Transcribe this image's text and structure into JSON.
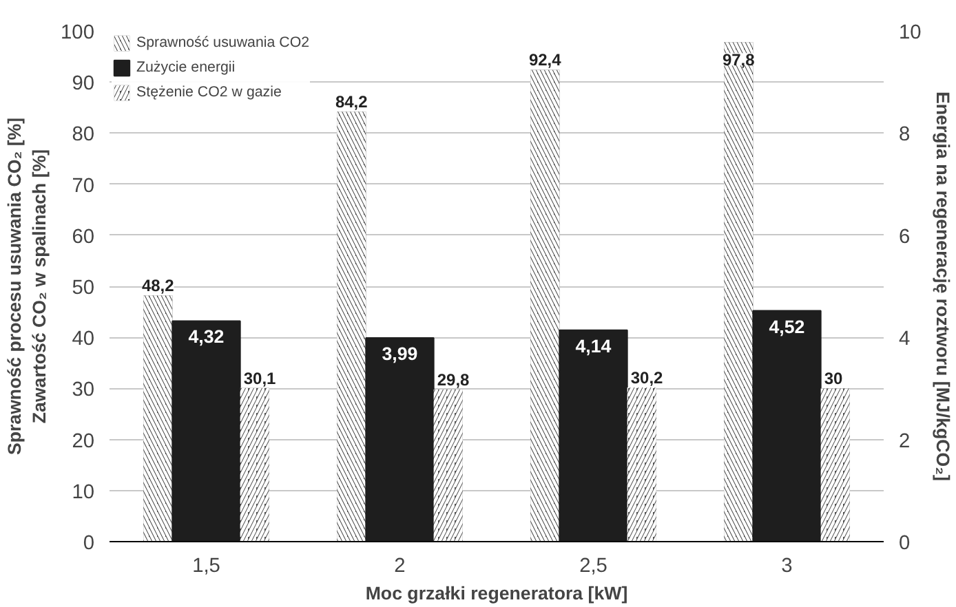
{
  "chart_data": {
    "type": "bar",
    "xlabel": "Moc grzałki regeneratora [kW]",
    "ylabel": "Sprawność procesu usuwania CO₂ [%]\nZawartość CO₂ w spalinach [%]",
    "y2label": "Energia na regenerację roztworu [MJ/kgCO₂]",
    "categories": [
      "1,5",
      "2",
      "2,5",
      "3"
    ],
    "series": [
      {
        "name": "Sprawność usuwania CO2",
        "color": "#404040",
        "values": [
          48.2,
          84.2,
          92.4,
          97.8
        ],
        "value_labels": [
          "48,2",
          "84,2",
          "92,4",
          "97,8"
        ]
      },
      {
        "name": "Zużycie energii",
        "color": "#1e1e1e",
        "axis": "y2",
        "values": [
          4.32,
          3.99,
          4.14,
          4.52
        ],
        "value_labels": [
          "4,32",
          "3,99",
          "4,14",
          "4,52"
        ]
      },
      {
        "name": "Stężenie CO2 w gazie",
        "color": "#505050",
        "values": [
          30.1,
          29.8,
          30.2,
          30
        ],
        "value_labels": [
          "30,1",
          "29,8",
          "30,2",
          "30"
        ]
      }
    ],
    "ylim": [
      0,
      100
    ],
    "yticks": [
      0,
      10,
      20,
      30,
      40,
      50,
      60,
      70,
      80,
      90,
      100
    ],
    "y2lim": [
      0,
      10
    ],
    "y2ticks": [
      0,
      2,
      4,
      6,
      8,
      10
    ],
    "grid": "y",
    "legend": "top left"
  }
}
